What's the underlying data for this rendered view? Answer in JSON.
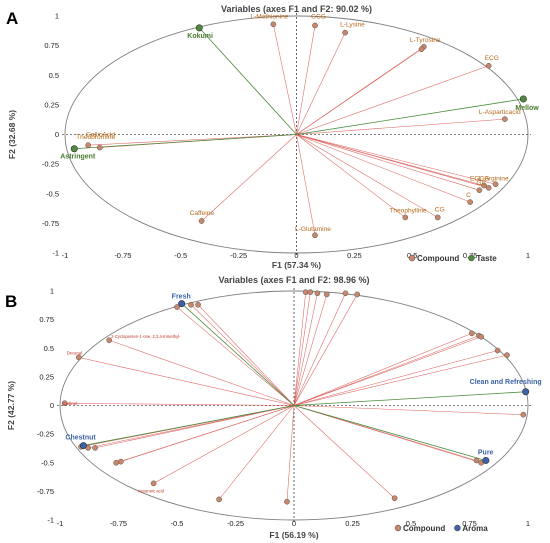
{
  "chart_data": [
    {
      "type": "scatter",
      "panel_label": "A",
      "title": "Variables (axes F1 and F2: 90.02 %)",
      "xlabel": "F1 (57.34 %)",
      "ylabel": "F2 (32.68 %)",
      "xlim": [
        -1.0,
        1.0
      ],
      "ylim": [
        -1.0,
        1.0
      ],
      "xticks": [
        "-1",
        "-0.75",
        "-0.5",
        "-0.25",
        "0",
        "0.25",
        "0.5",
        "0.75",
        "1"
      ],
      "yticks": [
        "1",
        "0.75",
        "0.5",
        "0.25",
        "0",
        "-0.25",
        "-0.5",
        "-0.75",
        "-1"
      ],
      "grid": false,
      "legend_position": "bottom-right",
      "legend": [
        "Compound",
        "Taste"
      ],
      "colors": {
        "Compound": "#c8866a",
        "Taste": "#4f8a3a",
        "compound_vector": "#d9534f",
        "taste_vector": "#4a8a3a"
      },
      "series": [
        {
          "name": "Compound",
          "points": [
            {
              "label": "L-Methionine",
              "x": -0.1,
              "y": 0.93
            },
            {
              "label": "GCG",
              "x": 0.08,
              "y": 0.92
            },
            {
              "label": "L-Lysine",
              "x": 0.21,
              "y": 0.86
            },
            {
              "label": "L-Tyrosine",
              "x": 0.55,
              "y": 0.74
            },
            {
              "label": "",
              "x": 0.54,
              "y": 0.72
            },
            {
              "label": "ECG",
              "x": 0.83,
              "y": 0.58
            },
            {
              "label": "L-Asparticacid",
              "x": 0.9,
              "y": 0.13
            },
            {
              "label": "Theobromine",
              "x": -0.9,
              "y": -0.09
            },
            {
              "label": "GallicAcid",
              "x": -0.85,
              "y": -0.11
            },
            {
              "label": "Caffeine",
              "x": -0.41,
              "y": -0.73
            },
            {
              "label": "L-Glutamine",
              "x": 0.08,
              "y": -0.85
            },
            {
              "label": "Theophylline",
              "x": 0.47,
              "y": -0.7
            },
            {
              "label": "CG",
              "x": 0.61,
              "y": -0.7
            },
            {
              "label": "L-Arginine",
              "x": 0.86,
              "y": -0.42
            },
            {
              "label": "EGCG",
              "x": 0.81,
              "y": -0.43
            },
            {
              "label": "C",
              "x": 0.75,
              "y": -0.57
            },
            {
              "label": "GC",
              "x": 0.79,
              "y": -0.47
            },
            {
              "label": "",
              "x": 0.83,
              "y": -0.45
            }
          ]
        },
        {
          "name": "Taste",
          "points": [
            {
              "label": "Kokumi",
              "x": -0.42,
              "y": 0.9
            },
            {
              "label": "Mellow",
              "x": 0.98,
              "y": 0.3
            },
            {
              "label": "Astringent",
              "x": -0.96,
              "y": -0.12
            }
          ]
        }
      ]
    },
    {
      "type": "scatter",
      "panel_label": "B",
      "title": "Variables (axes F1 and F2: 98.96 %)",
      "xlabel": "F1 (56.19 %)",
      "ylabel": "F2 (42.77 %)",
      "xlim": [
        -1.0,
        1.0
      ],
      "ylim": [
        -1.0,
        1.0
      ],
      "xticks": [
        "-1",
        "-0.75",
        "-0.5",
        "-0.25",
        "0",
        "0.25",
        "0.5",
        "0.75",
        "1"
      ],
      "yticks": [
        "1",
        "0.75",
        "0.5",
        "0.25",
        "0",
        "-0.25",
        "-0.5",
        "-0.75",
        "-1"
      ],
      "grid": false,
      "legend_position": "bottom-right",
      "legend": [
        "Compound",
        "Aroma"
      ],
      "colors": {
        "Compound": "#c8866a",
        "Aroma": "#3c63a7",
        "compound_vector": "#d9534f",
        "aroma_vector": "#4a8a3a"
      },
      "series": [
        {
          "name": "Compound",
          "points": [
            {
              "label": "",
              "x": -0.5,
              "y": 0.86
            },
            {
              "label": "",
              "x": -0.44,
              "y": 0.88
            },
            {
              "label": "",
              "x": -0.41,
              "y": 0.88
            },
            {
              "label": "2-Cyclopenten-1-one, 2,3,4-trimethyl-",
              "x": -0.79,
              "y": 0.57
            },
            {
              "label": "Decanal",
              "x": -0.92,
              "y": 0.42
            },
            {
              "label": "Cadinol",
              "x": -0.98,
              "y": 0.02
            },
            {
              "label": "",
              "x": 0.05,
              "y": 0.99
            },
            {
              "label": "",
              "x": 0.07,
              "y": 0.99
            },
            {
              "label": "",
              "x": 0.1,
              "y": 0.98
            },
            {
              "label": "",
              "x": 0.14,
              "y": 0.97
            },
            {
              "label": "",
              "x": 0.22,
              "y": 0.98
            },
            {
              "label": "",
              "x": 0.27,
              "y": 0.97
            },
            {
              "label": "",
              "x": 0.76,
              "y": 0.63
            },
            {
              "label": "",
              "x": 0.79,
              "y": 0.61
            },
            {
              "label": "",
              "x": 0.8,
              "y": 0.6
            },
            {
              "label": "",
              "x": 0.87,
              "y": 0.48
            },
            {
              "label": "",
              "x": 0.91,
              "y": 0.44
            },
            {
              "label": "",
              "x": 0.98,
              "y": -0.08
            },
            {
              "label": "",
              "x": -0.91,
              "y": -0.36
            },
            {
              "label": "",
              "x": -0.88,
              "y": -0.37
            },
            {
              "label": "",
              "x": -0.85,
              "y": -0.37
            },
            {
              "label": "",
              "x": -0.76,
              "y": -0.5
            },
            {
              "label": "",
              "x": -0.74,
              "y": -0.49
            },
            {
              "label": "Hexanoic acid",
              "x": -0.6,
              "y": -0.68
            },
            {
              "label": "",
              "x": -0.32,
              "y": -0.82
            },
            {
              "label": "",
              "x": -0.03,
              "y": -0.84
            },
            {
              "label": "",
              "x": 0.43,
              "y": -0.81
            },
            {
              "label": "",
              "x": 0.78,
              "y": -0.48
            },
            {
              "label": "",
              "x": 0.8,
              "y": -0.5
            }
          ]
        },
        {
          "name": "Aroma",
          "points": [
            {
              "label": "Fresh",
              "x": -0.48,
              "y": 0.89
            },
            {
              "label": "Clean and Refreshing",
              "x": 0.99,
              "y": 0.12
            },
            {
              "label": "Chestnut",
              "x": -0.9,
              "y": -0.35
            },
            {
              "label": "Pure",
              "x": 0.82,
              "y": -0.48
            }
          ]
        }
      ]
    }
  ]
}
